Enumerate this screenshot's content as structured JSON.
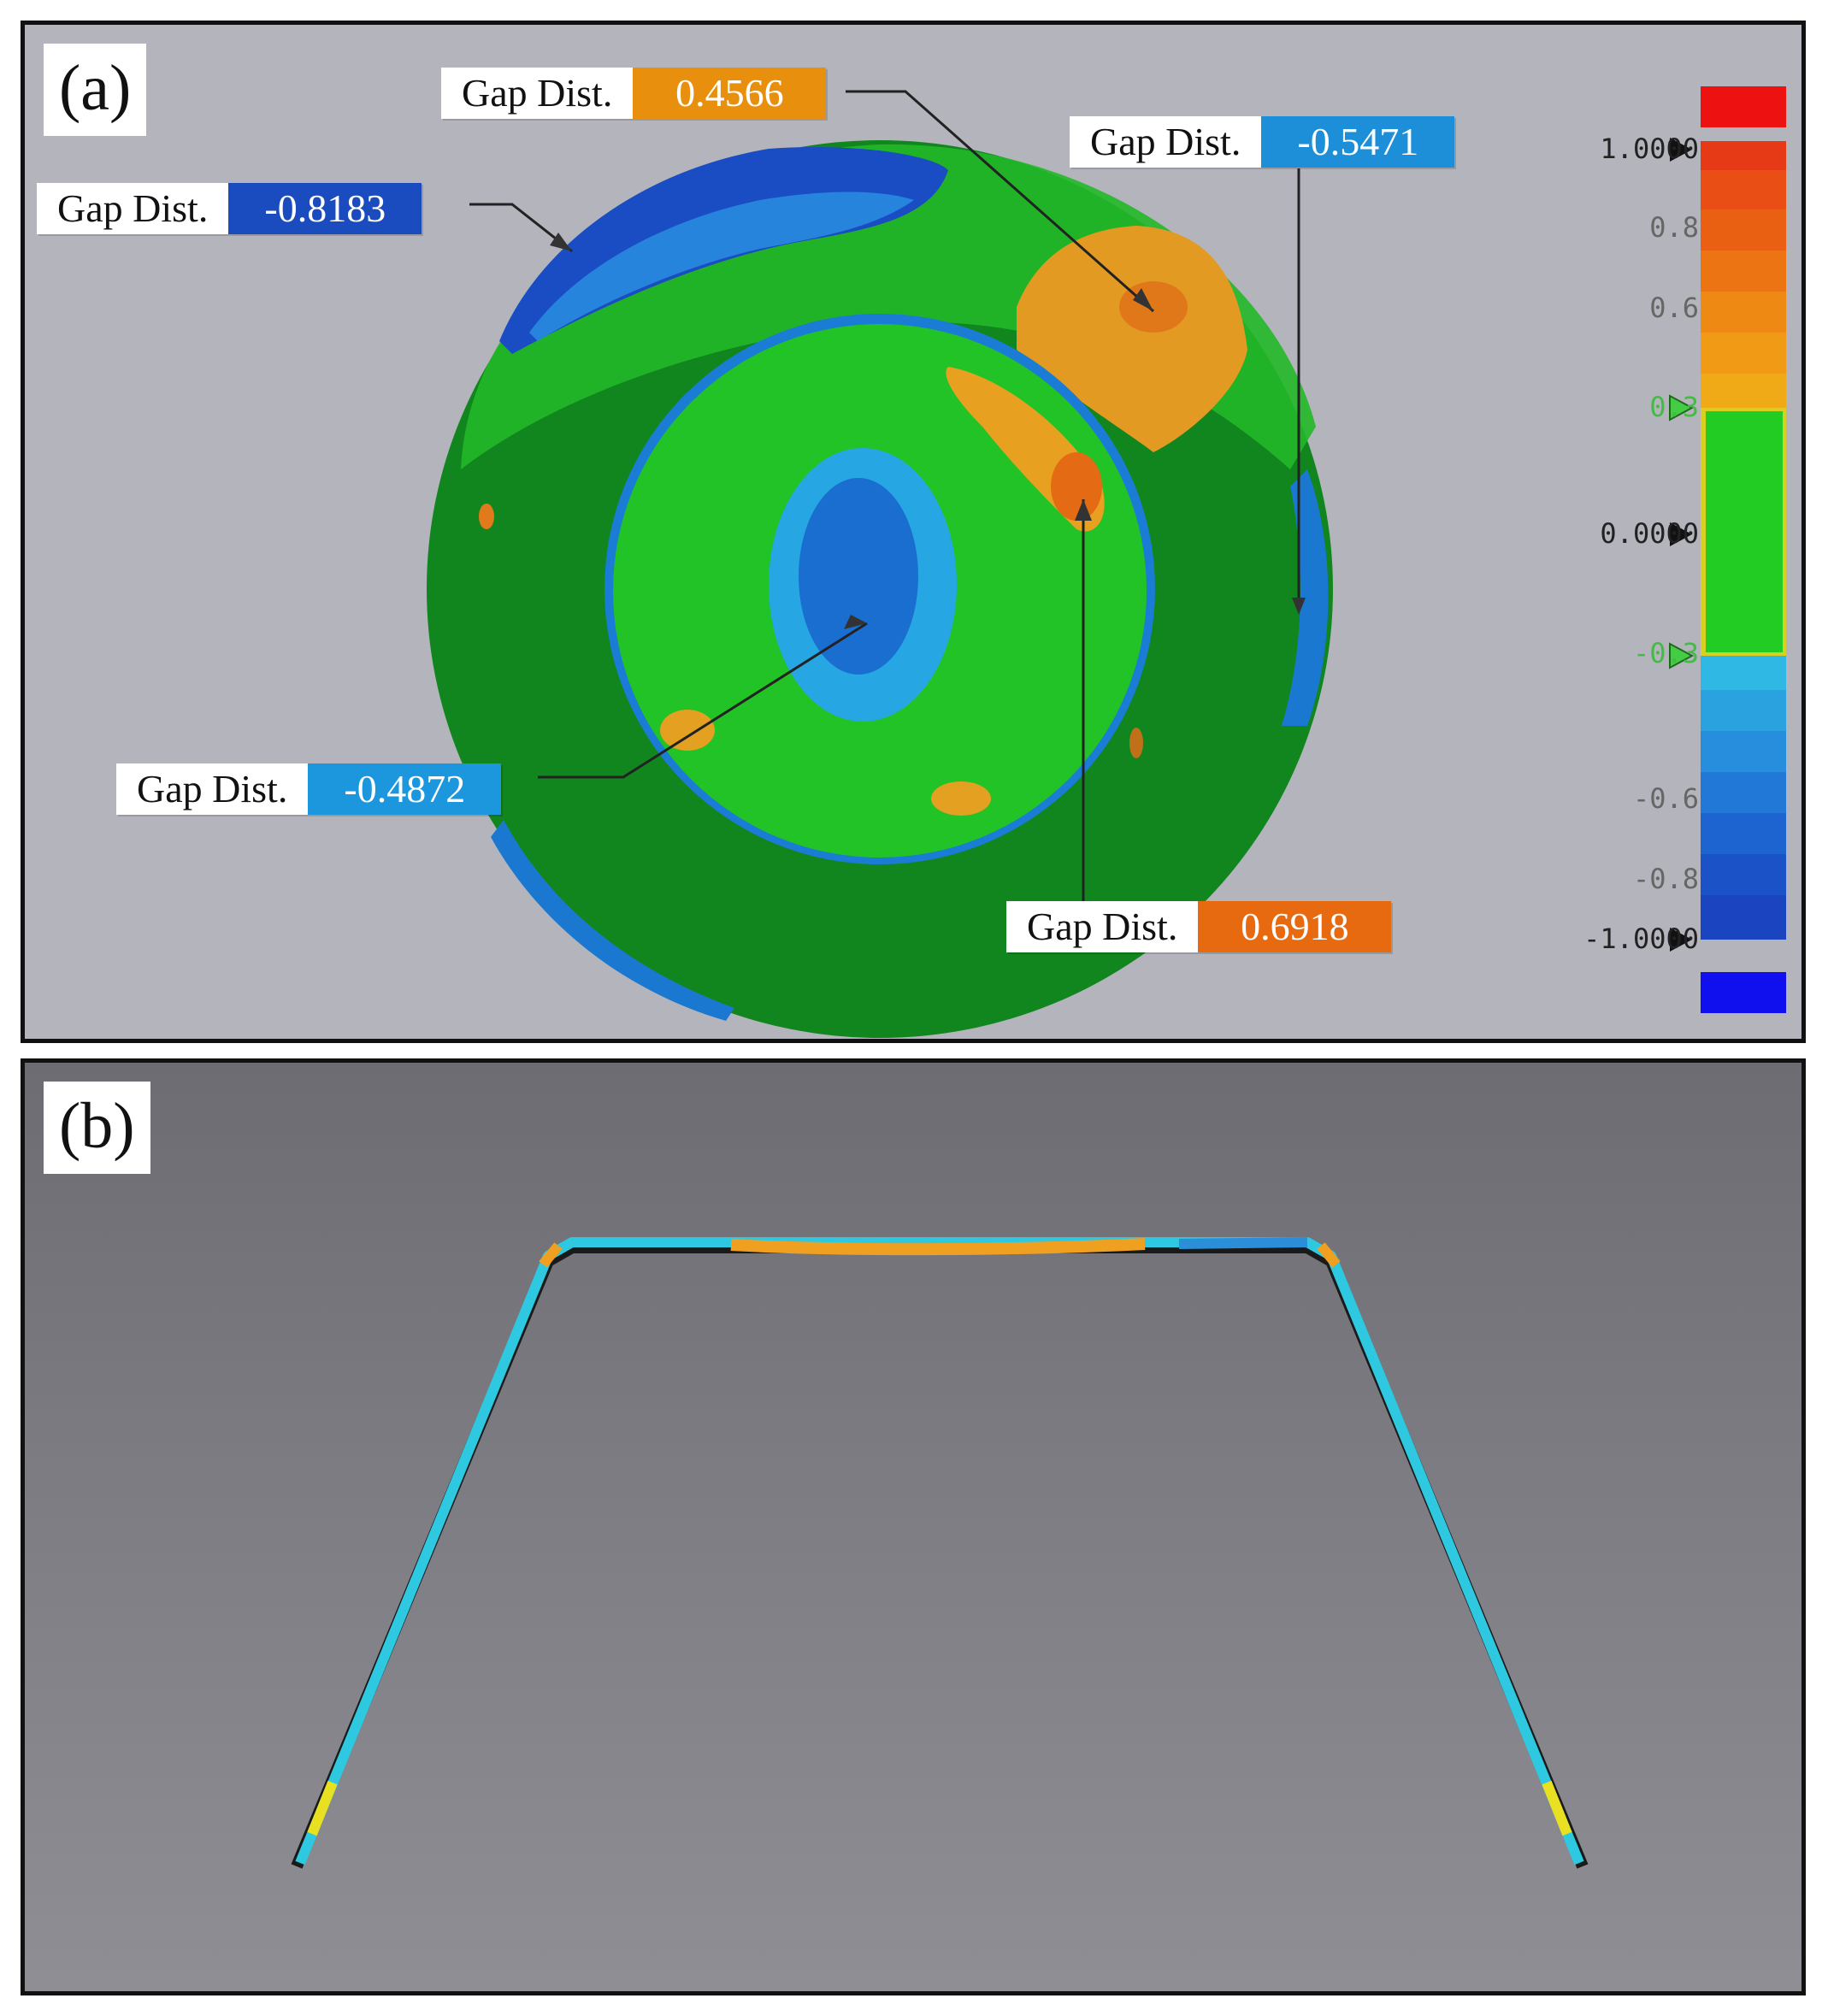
{
  "panel_a": {
    "label": "(a)",
    "callouts": [
      {
        "label": "Gap Dist.",
        "value": "0.4566",
        "color": "#e8900e"
      },
      {
        "label": "Gap Dist.",
        "value": "-0.5471",
        "color": "#1c8fd8"
      },
      {
        "label": "Gap Dist.",
        "value": "-0.8183",
        "color": "#1a4bbf"
      },
      {
        "label": "Gap Dist.",
        "value": "-0.4872",
        "color": "#1c96dc"
      },
      {
        "label": "Gap Dist.",
        "value": "0.6918",
        "color": "#e86a10"
      }
    ],
    "scale": {
      "ticks": [
        "1.0000",
        "0.8",
        "0.6",
        "0.3",
        "0.0000",
        "-0.3",
        "-0.6",
        "-0.8",
        "-1.0000"
      ],
      "over_color": "#ee1111",
      "under_color": "#1010ee",
      "tolerance_color": "#22cc22"
    }
  },
  "panel_b": {
    "label": "(b)"
  }
}
